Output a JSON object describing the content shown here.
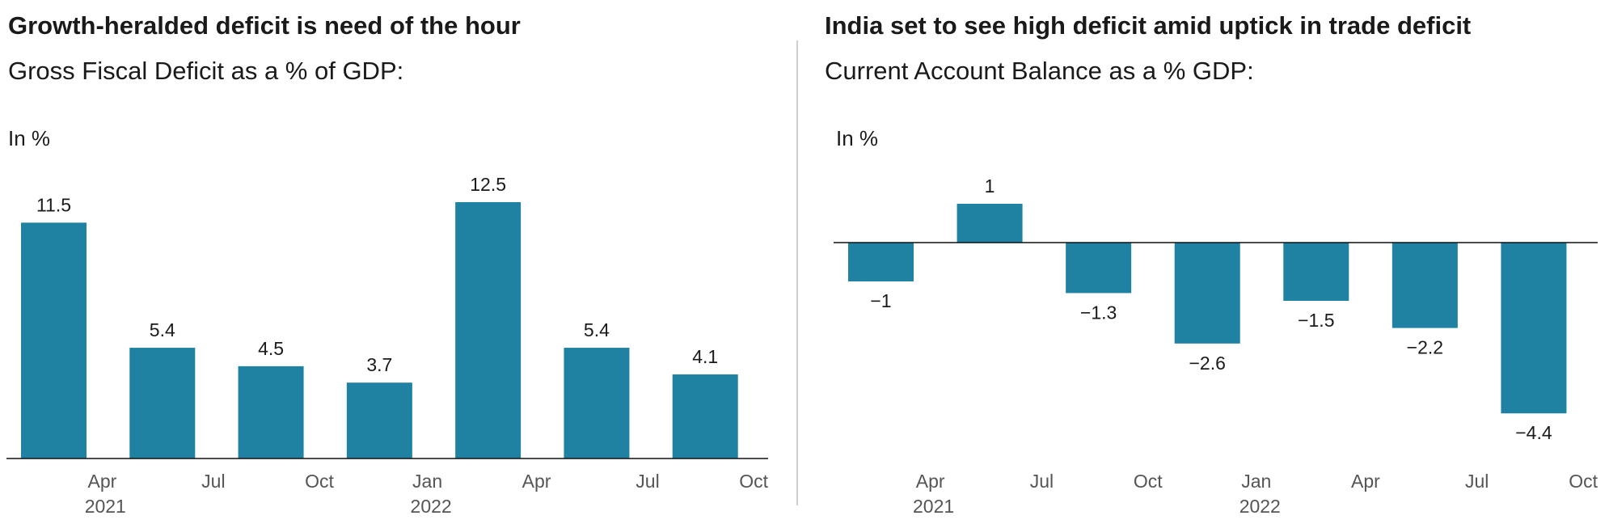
{
  "chart_data": [
    {
      "type": "bar",
      "title": "Growth-heralded deficit is need of the hour",
      "subtitle": "Gross Fiscal Deficit as a % of GDP:",
      "unit_label": "In %",
      "categories": [
        "Apr",
        "Jul",
        "Oct",
        "Jan",
        "Apr",
        "Jul",
        "Oct"
      ],
      "year_labels": [
        "2021",
        "",
        "",
        "2022",
        "",
        "",
        ""
      ],
      "values": [
        11.5,
        5.4,
        4.5,
        3.7,
        12.5,
        5.4,
        4.1
      ],
      "value_labels": [
        "11.5",
        "5.4",
        "4.5",
        "3.7",
        "12.5",
        "5.4",
        "4.1"
      ],
      "ylim": [
        0,
        12.5
      ],
      "grid": false,
      "color": "#1f82a3"
    },
    {
      "type": "bar",
      "title": "India set to see high deficit amid uptick in trade deficit",
      "subtitle": "Current Account Balance as a % GDP:",
      "unit_label": "In %",
      "categories": [
        "Apr",
        "Jul",
        "Oct",
        "Jan",
        "Apr",
        "Jul",
        "Oct"
      ],
      "year_labels": [
        "2021",
        "",
        "",
        "2022",
        "",
        "",
        ""
      ],
      "values": [
        -1,
        1,
        -1.3,
        -2.6,
        -1.5,
        -2.2,
        -4.4
      ],
      "value_labels": [
        "−1",
        "1",
        "−1.3",
        "−2.6",
        "−1.5",
        "−2.2",
        "−4.4"
      ],
      "ylim": [
        -4.4,
        1
      ],
      "grid": false,
      "color": "#1f82a3"
    }
  ]
}
